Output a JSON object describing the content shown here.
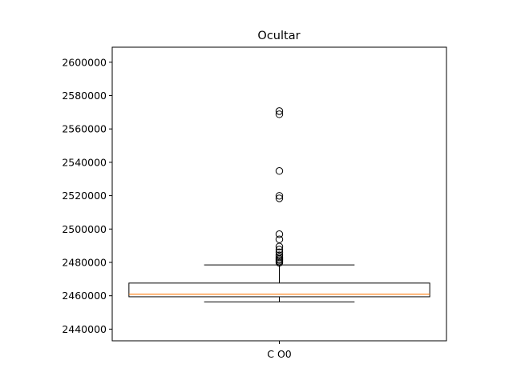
{
  "chart_data": {
    "type": "box",
    "title": "Ocultar",
    "xlabel": "",
    "ylabel": "",
    "ylim": [
      2433000,
      2609000
    ],
    "y_ticks": [
      2440000,
      2460000,
      2480000,
      2500000,
      2520000,
      2540000,
      2560000,
      2580000,
      2600000
    ],
    "y_tick_labels": [
      "2440000",
      "2460000",
      "2480000",
      "2500000",
      "2520000",
      "2540000",
      "2560000",
      "2580000",
      "2600000"
    ],
    "categories": [
      "C O0"
    ],
    "boxes": [
      {
        "category": "C O0",
        "whisker_low": 2456300,
        "q1": 2459400,
        "median": 2460900,
        "q3": 2467600,
        "whisker_high": 2478500,
        "outliers": [
          2479800,
          2480600,
          2481400,
          2482100,
          2483100,
          2484300,
          2486100,
          2487700,
          2489500,
          2493800,
          2496900,
          2518400,
          2519900,
          2534800,
          2568800,
          2570700
        ]
      }
    ],
    "grid": false,
    "colors": {
      "box": "#000000",
      "median": "#ff7f0e",
      "outlier_face": "none",
      "outlier_edge": "#000000"
    }
  }
}
